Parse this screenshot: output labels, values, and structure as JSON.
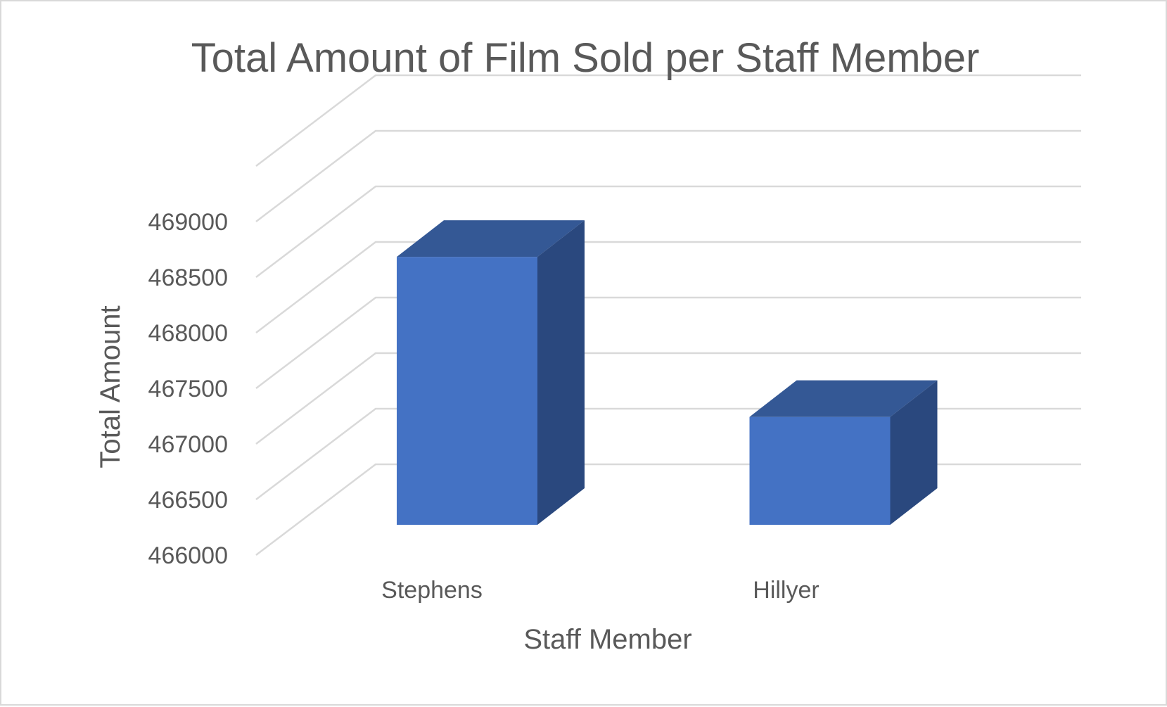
{
  "chart_data": {
    "type": "bar",
    "title": "Total Amount of Film Sold per Staff Member",
    "xlabel": "Staff Member",
    "ylabel": "Total Amount",
    "categories": [
      "Stephens",
      "Hillyer"
    ],
    "values": [
      468670,
      467230
    ],
    "yticks": [
      "466000",
      "466500",
      "467000",
      "467500",
      "468000",
      "468500",
      "469000"
    ],
    "ylim": [
      466000,
      469000
    ],
    "grid": true,
    "legend": "none",
    "colors": {
      "front": "#4472c4",
      "top": "#345895",
      "side": "#2a487e",
      "grid": "#d9d9d9",
      "text": "#595959"
    }
  }
}
